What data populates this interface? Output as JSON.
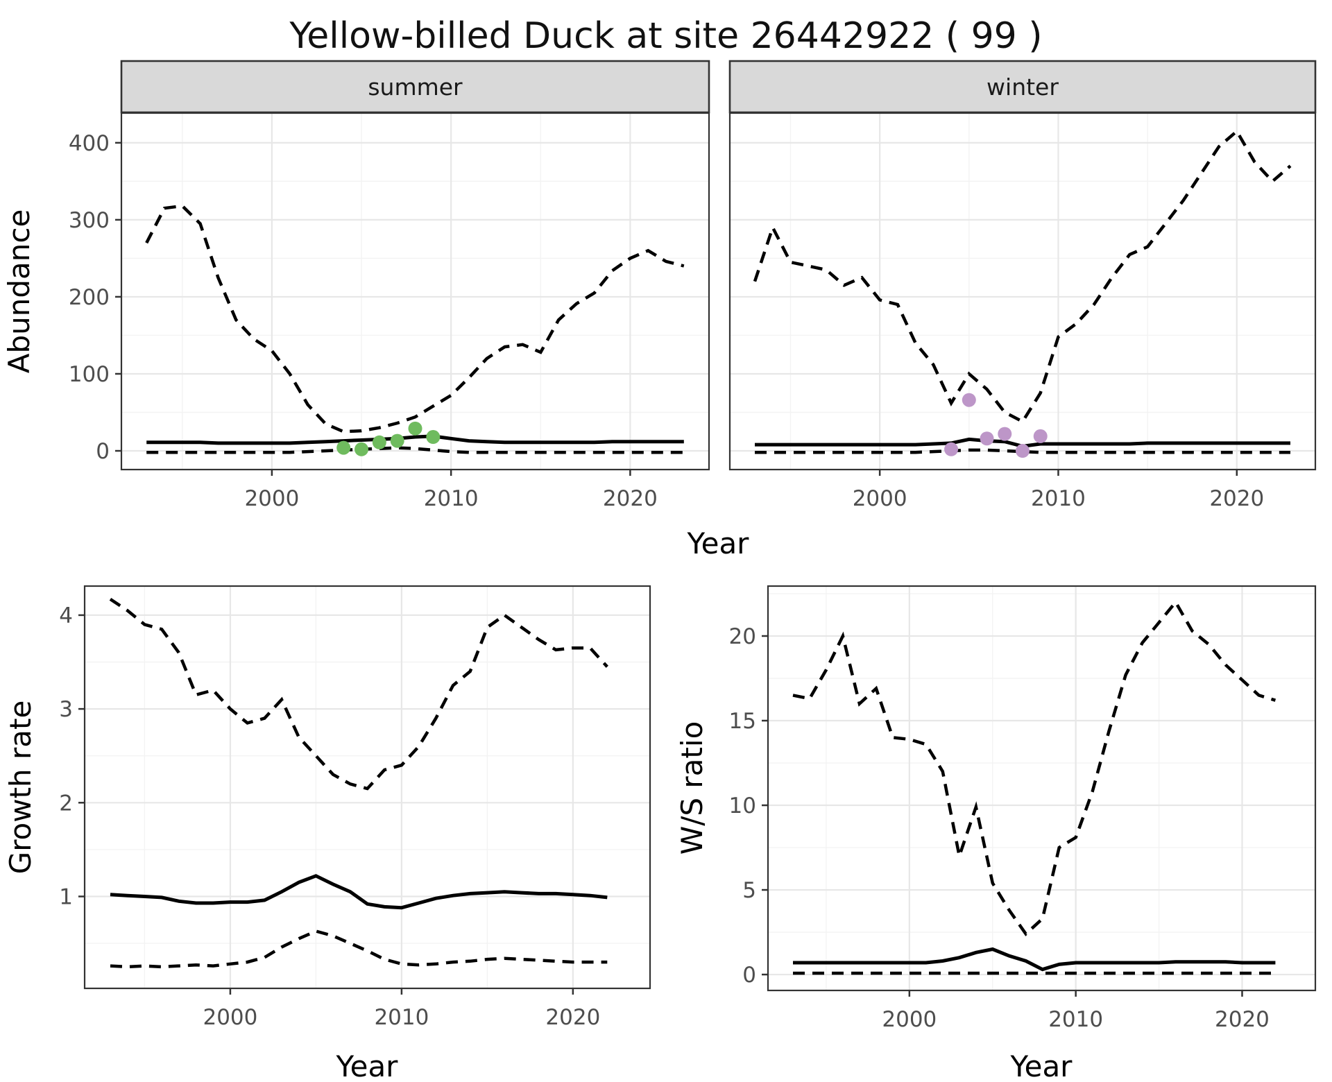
{
  "title": "Yellow-billed Duck at site 26442922 ( 99 )",
  "colors": {
    "background": "#ffffff",
    "panel_border": "#333333",
    "strip_background": "#d9d9d9",
    "strip_text": "#1a1a1a",
    "grid_major": "#e7e7e7",
    "grid_minor": "#f3f3f3",
    "line": "#000000",
    "tick_label": "#4d4d4d",
    "axis_title": "#000000",
    "summer_points": "#6fbb5e",
    "winter_points": "#bd96c8"
  },
  "shared_axes": {
    "top_row_x_label": "Year",
    "top_row_y_label": "Abundance"
  },
  "chart_data": [
    {
      "id": "summer",
      "type": "line",
      "strip": "summer",
      "xlabel": "Year",
      "ylabel": "Abundance",
      "xlim": [
        1991.6,
        2024.4
      ],
      "ylim": [
        -24.3,
        438.6
      ],
      "xticks": [
        2000,
        2010,
        2020
      ],
      "yticks": [
        0,
        100,
        200,
        300,
        400
      ],
      "years": [
        1993,
        1994,
        1995,
        1996,
        1997,
        1998,
        1999,
        2000,
        2001,
        2002,
        2003,
        2004,
        2005,
        2006,
        2007,
        2008,
        2009,
        2010,
        2011,
        2012,
        2013,
        2014,
        2015,
        2016,
        2017,
        2018,
        2019,
        2020,
        2021,
        2022,
        2023
      ],
      "series": [
        {
          "name": "upper_ci",
          "style": "dashed",
          "values": [
            270,
            315,
            318,
            295,
            225,
            170,
            145,
            130,
            100,
            60,
            35,
            25,
            26,
            30,
            36,
            44,
            58,
            72,
            95,
            120,
            135,
            138,
            128,
            170,
            191,
            205,
            234,
            250,
            260,
            246,
            240
          ]
        },
        {
          "name": "estimate",
          "style": "solid",
          "values": [
            11,
            11,
            11,
            11,
            10,
            10,
            10,
            10,
            10,
            11,
            12,
            13,
            14,
            15,
            16,
            18,
            19,
            16,
            13,
            12,
            11,
            11,
            11,
            11,
            11,
            11,
            12,
            12,
            12,
            12,
            12
          ]
        },
        {
          "name": "lower_ci",
          "style": "dashed",
          "values": [
            -2,
            -2,
            -2,
            -2,
            -2,
            -2,
            -2,
            -2,
            -2,
            -1,
            0,
            1,
            2,
            3,
            4,
            3,
            1,
            -1,
            -2,
            -2,
            -2,
            -2,
            -2,
            -2,
            -2,
            -2,
            -2,
            -2,
            -2,
            -2,
            -2
          ]
        }
      ],
      "points": {
        "name": "observed-counts-summer",
        "color_key": "summer_points",
        "years": [
          2004,
          2005,
          2006,
          2007,
          2008,
          2009
        ],
        "values": [
          4,
          2,
          11,
          13,
          29,
          18
        ]
      }
    },
    {
      "id": "winter",
      "type": "line",
      "strip": "winter",
      "xlabel": "Year",
      "ylabel": "Abundance",
      "xlim": [
        1991.6,
        2024.4
      ],
      "ylim": [
        -24.3,
        438.6
      ],
      "xticks": [
        2000,
        2010,
        2020
      ],
      "yticks": [
        0,
        100,
        200,
        300,
        400
      ],
      "years": [
        1993,
        1994,
        1995,
        1996,
        1997,
        1998,
        1999,
        2000,
        2001,
        2002,
        2003,
        2004,
        2005,
        2006,
        2007,
        2008,
        2009,
        2010,
        2011,
        2012,
        2013,
        2014,
        2015,
        2016,
        2017,
        2018,
        2019,
        2020,
        2021,
        2022,
        2023
      ],
      "series": [
        {
          "name": "upper_ci",
          "style": "dashed",
          "values": [
            220,
            290,
            245,
            240,
            235,
            215,
            225,
            196,
            190,
            140,
            112,
            62,
            100,
            80,
            50,
            38,
            75,
            148,
            165,
            190,
            225,
            255,
            265,
            295,
            325,
            360,
            395,
            415,
            375,
            350,
            370
          ]
        },
        {
          "name": "estimate",
          "style": "solid",
          "values": [
            8,
            8,
            8,
            8,
            8,
            8,
            8,
            8,
            8,
            8,
            9,
            10,
            15,
            13,
            12,
            6,
            9,
            9,
            9,
            9,
            9,
            9,
            10,
            10,
            10,
            10,
            10,
            10,
            10,
            10,
            10
          ]
        },
        {
          "name": "lower_ci",
          "style": "dashed",
          "values": [
            -2,
            -2,
            -2,
            -2,
            -2,
            -2,
            -2,
            -2,
            -2,
            -2,
            -1,
            0,
            1,
            1,
            0,
            -1,
            -2,
            -2,
            -2,
            -2,
            -2,
            -2,
            -2,
            -2,
            -2,
            -2,
            -2,
            -2,
            -2,
            -2,
            -2
          ]
        }
      ],
      "points": {
        "name": "observed-counts-winter",
        "color_key": "winter_points",
        "years": [
          2004,
          2005,
          2006,
          2007,
          2008,
          2009
        ],
        "values": [
          2,
          66,
          16,
          22,
          0,
          19
        ]
      }
    },
    {
      "id": "growth",
      "type": "line",
      "strip": null,
      "xlabel": "Year",
      "ylabel": "Growth rate",
      "xlim": [
        1991.5,
        2024.5
      ],
      "ylim": [
        0.02,
        4.31
      ],
      "xticks": [
        2000,
        2010,
        2020
      ],
      "yticks": [
        1,
        2,
        3,
        4
      ],
      "years": [
        1993,
        1994,
        1995,
        1996,
        1997,
        1998,
        1999,
        2000,
        2001,
        2002,
        2003,
        2004,
        2005,
        2006,
        2007,
        2008,
        2009,
        2010,
        2011,
        2012,
        2013,
        2014,
        2015,
        2016,
        2017,
        2018,
        2019,
        2020,
        2021,
        2022
      ],
      "series": [
        {
          "name": "upper_ci",
          "style": "dashed",
          "values": [
            4.17,
            4.05,
            3.9,
            3.85,
            3.6,
            3.15,
            3.2,
            3.0,
            2.85,
            2.9,
            3.1,
            2.7,
            2.5,
            2.3,
            2.2,
            2.15,
            2.35,
            2.4,
            2.6,
            2.9,
            3.25,
            3.4,
            3.87,
            4.0,
            3.87,
            3.74,
            3.63,
            3.65,
            3.65,
            3.45
          ]
        },
        {
          "name": "estimate",
          "style": "solid",
          "values": [
            1.02,
            1.01,
            1.0,
            0.99,
            0.95,
            0.93,
            0.93,
            0.94,
            0.94,
            0.96,
            1.05,
            1.15,
            1.22,
            1.13,
            1.05,
            0.92,
            0.89,
            0.88,
            0.93,
            0.98,
            1.01,
            1.03,
            1.04,
            1.05,
            1.04,
            1.03,
            1.03,
            1.02,
            1.01,
            0.99
          ]
        },
        {
          "name": "lower_ci",
          "style": "dashed",
          "values": [
            0.26,
            0.25,
            0.26,
            0.25,
            0.26,
            0.27,
            0.26,
            0.28,
            0.3,
            0.35,
            0.46,
            0.55,
            0.63,
            0.58,
            0.5,
            0.42,
            0.33,
            0.28,
            0.27,
            0.28,
            0.3,
            0.31,
            0.33,
            0.34,
            0.33,
            0.32,
            0.31,
            0.3,
            0.3,
            0.3
          ]
        }
      ],
      "points": null
    },
    {
      "id": "ws",
      "type": "line",
      "strip": null,
      "xlabel": "Year",
      "ylabel": "W/S ratio",
      "xlim": [
        1991.5,
        2024.4
      ],
      "ylim": [
        -0.94,
        22.95
      ],
      "xticks": [
        2000,
        2010,
        2020
      ],
      "yticks": [
        0,
        5,
        10,
        15,
        20
      ],
      "years": [
        1993,
        1994,
        1995,
        1996,
        1997,
        1998,
        1999,
        2000,
        2001,
        2002,
        2003,
        2004,
        2005,
        2006,
        2007,
        2008,
        2009,
        2010,
        2011,
        2012,
        2013,
        2014,
        2015,
        2016,
        2017,
        2018,
        2019,
        2020,
        2021,
        2022
      ],
      "series": [
        {
          "name": "upper_ci",
          "style": "dashed",
          "values": [
            16.5,
            16.3,
            18.0,
            20.0,
            16.0,
            16.9,
            14.0,
            13.9,
            13.6,
            12.0,
            7.0,
            9.9,
            5.4,
            3.8,
            2.4,
            3.3,
            7.5,
            8.1,
            10.8,
            14.4,
            17.7,
            19.6,
            20.8,
            22.0,
            20.3,
            19.5,
            18.3,
            17.4,
            16.5,
            16.2
          ]
        },
        {
          "name": "estimate",
          "style": "solid",
          "values": [
            0.7,
            0.7,
            0.7,
            0.7,
            0.7,
            0.7,
            0.7,
            0.7,
            0.7,
            0.8,
            1.0,
            1.3,
            1.5,
            1.1,
            0.8,
            0.3,
            0.6,
            0.7,
            0.7,
            0.7,
            0.7,
            0.7,
            0.7,
            0.75,
            0.75,
            0.75,
            0.75,
            0.7,
            0.7,
            0.7
          ]
        },
        {
          "name": "lower_ci",
          "style": "dashed",
          "values": [
            0.08,
            0.08,
            0.08,
            0.08,
            0.08,
            0.08,
            0.08,
            0.08,
            0.08,
            0.08,
            0.08,
            0.08,
            0.08,
            0.08,
            0.08,
            0.08,
            0.08,
            0.08,
            0.08,
            0.08,
            0.08,
            0.08,
            0.08,
            0.08,
            0.08,
            0.08,
            0.08,
            0.08,
            0.08,
            0.08
          ]
        }
      ],
      "points": null
    }
  ]
}
